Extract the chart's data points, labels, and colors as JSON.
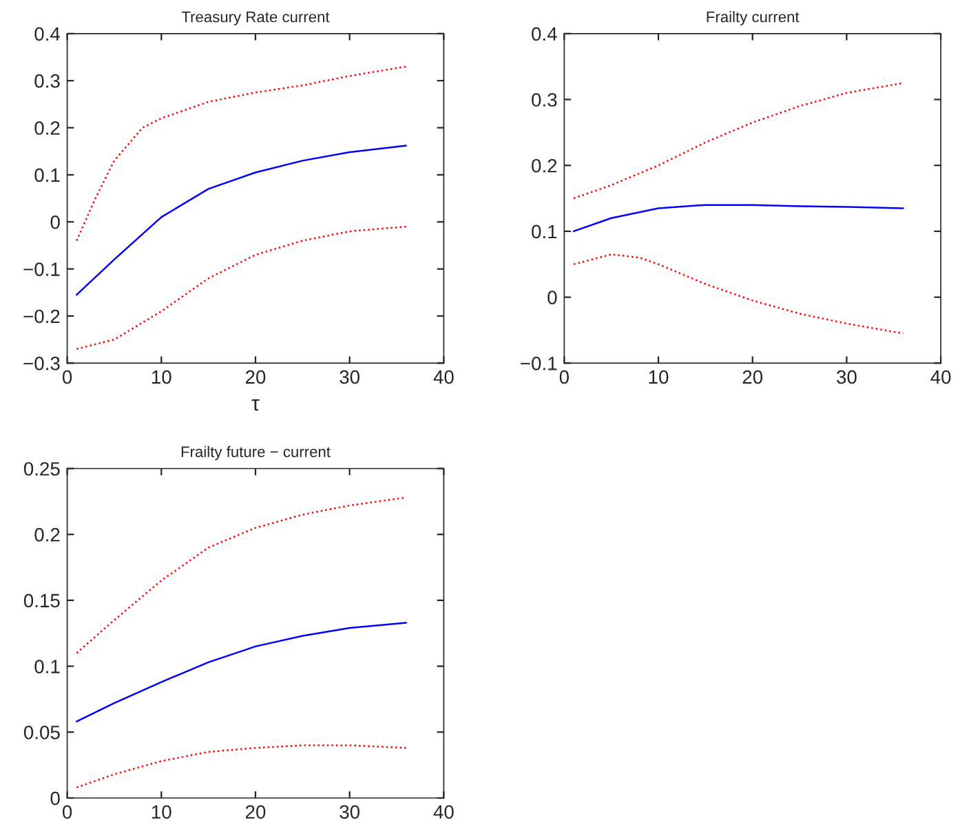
{
  "chart_data": [
    {
      "type": "line",
      "title": "Treasury Rate current",
      "xlabel": "τ",
      "xlim": [
        0,
        40
      ],
      "xticks": [
        0,
        10,
        20,
        30,
        40
      ],
      "ylim": [
        -0.3,
        0.4
      ],
      "yticks": [
        {
          "value": -0.3,
          "label": "−0.3"
        },
        {
          "value": -0.2,
          "label": "−0.2"
        },
        {
          "value": -0.1,
          "label": "−0.1"
        },
        0,
        0.1,
        0.2,
        0.3,
        0.4
      ],
      "grid": false,
      "legend": false,
      "series": [
        {
          "color": "#0000ff",
          "line_style": "solid",
          "x": [
            1,
            5,
            10,
            15,
            20,
            25,
            30,
            36
          ],
          "values": [
            -0.155,
            -0.08,
            0.01,
            0.07,
            0.105,
            0.13,
            0.148,
            0.162
          ]
        },
        {
          "color": "#ff0000",
          "line_style": "dotted",
          "x": [
            1,
            3,
            5,
            8,
            10,
            15,
            20,
            25,
            30,
            36
          ],
          "values": [
            -0.04,
            0.05,
            0.13,
            0.2,
            0.22,
            0.255,
            0.275,
            0.29,
            0.31,
            0.33
          ]
        },
        {
          "color": "#ff0000",
          "line_style": "dotted",
          "x": [
            1,
            5,
            10,
            15,
            20,
            25,
            30,
            36
          ],
          "values": [
            -0.27,
            -0.25,
            -0.19,
            -0.12,
            -0.07,
            -0.04,
            -0.02,
            -0.01
          ]
        }
      ]
    },
    {
      "type": "line",
      "title": "Frailty current",
      "xlim": [
        0,
        40
      ],
      "xticks": [
        0,
        10,
        20,
        30,
        40
      ],
      "ylim": [
        -0.1,
        0.4
      ],
      "yticks": [
        {
          "value": -0.1,
          "label": "−0.1"
        },
        0,
        0.1,
        0.2,
        0.3,
        0.4
      ],
      "grid": false,
      "legend": false,
      "series": [
        {
          "color": "#0000ff",
          "line_style": "solid",
          "x": [
            1,
            5,
            10,
            15,
            20,
            25,
            30,
            36
          ],
          "values": [
            0.1,
            0.12,
            0.135,
            0.14,
            0.14,
            0.138,
            0.137,
            0.135
          ]
        },
        {
          "color": "#ff0000",
          "line_style": "dotted",
          "x": [
            1,
            5,
            10,
            15,
            20,
            25,
            30,
            36
          ],
          "values": [
            0.15,
            0.17,
            0.2,
            0.235,
            0.265,
            0.29,
            0.31,
            0.325
          ]
        },
        {
          "color": "#ff0000",
          "line_style": "dotted",
          "x": [
            1,
            5,
            8,
            10,
            15,
            20,
            25,
            30,
            36
          ],
          "values": [
            0.05,
            0.065,
            0.06,
            0.05,
            0.02,
            -0.005,
            -0.025,
            -0.04,
            -0.055
          ]
        }
      ]
    },
    {
      "type": "line",
      "title": "Frailty future − current",
      "xlim": [
        0,
        40
      ],
      "xticks": [
        0,
        10,
        20,
        30,
        40
      ],
      "ylim": [
        0,
        0.25
      ],
      "yticks": [
        0,
        0.05,
        0.1,
        0.15,
        0.2,
        0.25
      ],
      "grid": false,
      "legend": false,
      "series": [
        {
          "color": "#0000ff",
          "line_style": "solid",
          "x": [
            1,
            5,
            10,
            15,
            20,
            25,
            30,
            36
          ],
          "values": [
            0.058,
            0.072,
            0.088,
            0.103,
            0.115,
            0.123,
            0.129,
            0.133
          ]
        },
        {
          "color": "#ff0000",
          "line_style": "dotted",
          "x": [
            1,
            5,
            10,
            15,
            20,
            25,
            30,
            36
          ],
          "values": [
            0.11,
            0.135,
            0.165,
            0.19,
            0.205,
            0.215,
            0.222,
            0.228
          ]
        },
        {
          "color": "#ff0000",
          "line_style": "dotted",
          "x": [
            1,
            5,
            10,
            15,
            20,
            25,
            30,
            36
          ],
          "values": [
            0.008,
            0.018,
            0.028,
            0.035,
            0.038,
            0.04,
            0.04,
            0.038
          ]
        }
      ]
    }
  ]
}
